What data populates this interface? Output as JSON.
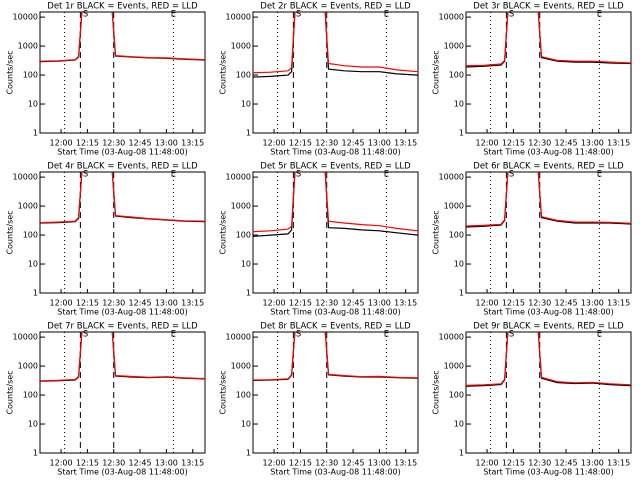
{
  "chart_data": [
    {
      "type": "line",
      "title": "Det 1r BLACK = Events, RED = LLD",
      "x_label": "Start Time (03-Aug-08 11:48:00)",
      "y_label": "Counts/sec",
      "log_scale": true,
      "xlim": [
        "11:48",
        "13:22"
      ],
      "ylim": [
        1,
        15000
      ],
      "xticks": [
        "12:00",
        "12:15",
        "12:30",
        "12:45",
        "13:00",
        "13:15"
      ],
      "yticks": [
        1,
        10,
        100,
        1000,
        10000
      ],
      "x": [
        "11:48",
        "11:58",
        "12:08",
        "12:10",
        "12:12",
        "12:29",
        "12:31",
        "12:40",
        "12:50",
        "13:00",
        "13:10",
        "13:22"
      ],
      "series": [
        {
          "color": "#000000",
          "values": [
            290,
            300,
            330,
            420,
            20000,
            20000,
            450,
            420,
            390,
            380,
            350,
            330
          ]
        },
        {
          "color": "#ff0000",
          "values": [
            300,
            310,
            340,
            440,
            20000,
            20000,
            470,
            430,
            400,
            390,
            360,
            340
          ]
        }
      ],
      "vlines": [
        {
          "x": "12:02",
          "style": "dotted"
        },
        {
          "x": "12:11",
          "style": "dashed"
        },
        {
          "x": "12:30",
          "style": "dashed"
        },
        {
          "x": "13:04",
          "style": "dotted"
        }
      ],
      "annotations": [
        {
          "x": "12:14",
          "label": "S"
        },
        {
          "x": "13:04",
          "label": "E"
        }
      ]
    },
    {
      "type": "line",
      "title": "Det 2r BLACK = Events, RED = LLD",
      "x_label": "Start Time (03-Aug-08 11:48:00)",
      "y_label": "Counts/sec",
      "log_scale": true,
      "xlim": [
        "11:48",
        "13:22"
      ],
      "ylim": [
        1,
        15000
      ],
      "xticks": [
        "12:00",
        "12:15",
        "12:30",
        "12:45",
        "13:00",
        "13:15"
      ],
      "yticks": [
        1,
        10,
        100,
        1000,
        10000
      ],
      "x": [
        "11:48",
        "11:58",
        "12:08",
        "12:10",
        "12:12",
        "12:29",
        "12:31",
        "12:40",
        "12:50",
        "13:00",
        "13:10",
        "13:22"
      ],
      "series": [
        {
          "color": "#000000",
          "values": [
            85,
            90,
            100,
            130,
            20000,
            20000,
            160,
            140,
            130,
            130,
            110,
            100
          ]
        },
        {
          "color": "#ff0000",
          "values": [
            120,
            125,
            140,
            180,
            20000,
            20000,
            250,
            210,
            190,
            190,
            150,
            130
          ]
        }
      ],
      "vlines": [
        {
          "x": "12:02",
          "style": "dotted"
        },
        {
          "x": "12:11",
          "style": "dashed"
        },
        {
          "x": "12:30",
          "style": "dashed"
        },
        {
          "x": "13:04",
          "style": "dotted"
        }
      ],
      "annotations": [
        {
          "x": "12:14",
          "label": "S"
        },
        {
          "x": "13:04",
          "label": "E"
        }
      ]
    },
    {
      "type": "line",
      "title": "Det 3r BLACK = Events, RED = LLD",
      "x_label": "Start Time (03-Aug-08 11:48:00)",
      "y_label": "Counts/sec",
      "log_scale": true,
      "xlim": [
        "11:48",
        "13:22"
      ],
      "ylim": [
        1,
        15000
      ],
      "xticks": [
        "12:00",
        "12:15",
        "12:30",
        "12:45",
        "13:00",
        "13:15"
      ],
      "yticks": [
        1,
        10,
        100,
        1000,
        10000
      ],
      "x": [
        "11:48",
        "11:58",
        "12:08",
        "12:10",
        "12:12",
        "12:29",
        "12:31",
        "12:40",
        "12:50",
        "13:00",
        "13:10",
        "13:22"
      ],
      "series": [
        {
          "color": "#000000",
          "values": [
            190,
            200,
            220,
            300,
            20000,
            20000,
            400,
            300,
            280,
            280,
            260,
            250
          ]
        },
        {
          "color": "#ff0000",
          "values": [
            210,
            215,
            240,
            320,
            20000,
            20000,
            430,
            320,
            300,
            300,
            280,
            260
          ]
        }
      ],
      "vlines": [
        {
          "x": "12:02",
          "style": "dotted"
        },
        {
          "x": "12:11",
          "style": "dashed"
        },
        {
          "x": "12:30",
          "style": "dashed"
        },
        {
          "x": "13:04",
          "style": "dotted"
        }
      ],
      "annotations": [
        {
          "x": "12:14",
          "label": "S"
        },
        {
          "x": "13:04",
          "label": "E"
        }
      ]
    },
    {
      "type": "line",
      "title": "Det 4r BLACK = Events, RED = LLD",
      "x_label": "Start Time (03-Aug-08 11:48:00)",
      "y_label": "Counts/sec",
      "log_scale": true,
      "xlim": [
        "11:48",
        "13:22"
      ],
      "ylim": [
        1,
        15000
      ],
      "xticks": [
        "12:00",
        "12:15",
        "12:30",
        "12:45",
        "13:00",
        "13:15"
      ],
      "yticks": [
        1,
        10,
        100,
        1000,
        10000
      ],
      "x": [
        "11:48",
        "11:58",
        "12:08",
        "12:10",
        "12:12",
        "12:29",
        "12:31",
        "12:40",
        "12:50",
        "13:00",
        "13:10",
        "13:22"
      ],
      "series": [
        {
          "color": "#000000",
          "values": [
            260,
            270,
            290,
            380,
            20000,
            20000,
            450,
            400,
            360,
            330,
            300,
            290
          ]
        },
        {
          "color": "#ff0000",
          "values": [
            270,
            280,
            300,
            400,
            20000,
            20000,
            470,
            420,
            370,
            340,
            310,
            300
          ]
        }
      ],
      "vlines": [
        {
          "x": "12:02",
          "style": "dotted"
        },
        {
          "x": "12:11",
          "style": "dashed"
        },
        {
          "x": "12:30",
          "style": "dashed"
        },
        {
          "x": "13:04",
          "style": "dotted"
        }
      ],
      "annotations": [
        {
          "x": "12:14",
          "label": "S"
        },
        {
          "x": "13:04",
          "label": "E"
        }
      ]
    },
    {
      "type": "line",
      "title": "Det 5r BLACK = Events, RED = LLD",
      "x_label": "Start Time (03-Aug-08 11:48:00)",
      "y_label": "Counts/sec",
      "log_scale": true,
      "xlim": [
        "11:48",
        "13:22"
      ],
      "ylim": [
        1,
        15000
      ],
      "xticks": [
        "12:00",
        "12:15",
        "12:30",
        "12:45",
        "13:00",
        "13:15"
      ],
      "yticks": [
        1,
        10,
        100,
        1000,
        10000
      ],
      "x": [
        "11:48",
        "11:58",
        "12:08",
        "12:10",
        "12:12",
        "12:29",
        "12:31",
        "12:40",
        "12:50",
        "13:00",
        "13:10",
        "13:22"
      ],
      "series": [
        {
          "color": "#000000",
          "values": [
            90,
            100,
            110,
            150,
            20000,
            20000,
            180,
            170,
            150,
            140,
            120,
            100
          ]
        },
        {
          "color": "#ff0000",
          "values": [
            130,
            140,
            160,
            200,
            20000,
            20000,
            300,
            260,
            230,
            210,
            170,
            140
          ]
        }
      ],
      "vlines": [
        {
          "x": "12:02",
          "style": "dotted"
        },
        {
          "x": "12:11",
          "style": "dashed"
        },
        {
          "x": "12:30",
          "style": "dashed"
        },
        {
          "x": "13:04",
          "style": "dotted"
        }
      ],
      "annotations": [
        {
          "x": "12:14",
          "label": "S"
        },
        {
          "x": "13:04",
          "label": "E"
        }
      ]
    },
    {
      "type": "line",
      "title": "Det 6r BLACK = Events, RED = LLD",
      "x_label": "Start Time (03-Aug-08 11:48:00)",
      "y_label": "Counts/sec",
      "log_scale": true,
      "xlim": [
        "11:48",
        "13:22"
      ],
      "ylim": [
        1,
        15000
      ],
      "xticks": [
        "12:00",
        "12:15",
        "12:30",
        "12:45",
        "13:00",
        "13:15"
      ],
      "yticks": [
        1,
        10,
        100,
        1000,
        10000
      ],
      "x": [
        "11:48",
        "11:58",
        "12:08",
        "12:10",
        "12:12",
        "12:29",
        "12:31",
        "12:40",
        "12:50",
        "13:00",
        "13:10",
        "13:22"
      ],
      "series": [
        {
          "color": "#000000",
          "values": [
            190,
            200,
            220,
            320,
            20000,
            20000,
            400,
            300,
            260,
            260,
            260,
            240
          ]
        },
        {
          "color": "#ff0000",
          "values": [
            205,
            215,
            235,
            340,
            20000,
            20000,
            430,
            320,
            280,
            280,
            275,
            255
          ]
        }
      ],
      "vlines": [
        {
          "x": "12:02",
          "style": "dotted"
        },
        {
          "x": "12:11",
          "style": "dashed"
        },
        {
          "x": "12:30",
          "style": "dashed"
        },
        {
          "x": "13:04",
          "style": "dotted"
        }
      ],
      "annotations": [
        {
          "x": "12:14",
          "label": "S"
        },
        {
          "x": "13:04",
          "label": "E"
        }
      ]
    },
    {
      "type": "line",
      "title": "Det 7r BLACK = Events, RED = LLD",
      "x_label": "Start Time (03-Aug-08 11:48:00)",
      "y_label": "Counts/sec",
      "log_scale": true,
      "xlim": [
        "11:48",
        "13:22"
      ],
      "ylim": [
        1,
        15000
      ],
      "xticks": [
        "12:00",
        "12:15",
        "12:30",
        "12:45",
        "13:00",
        "13:15"
      ],
      "yticks": [
        1,
        10,
        100,
        1000,
        10000
      ],
      "x": [
        "11:48",
        "11:58",
        "12:08",
        "12:10",
        "12:12",
        "12:29",
        "12:31",
        "12:40",
        "12:50",
        "13:00",
        "13:10",
        "13:22"
      ],
      "series": [
        {
          "color": "#000000",
          "values": [
            300,
            310,
            330,
            420,
            20000,
            20000,
            450,
            420,
            400,
            420,
            380,
            360
          ]
        },
        {
          "color": "#ff0000",
          "values": [
            310,
            320,
            345,
            440,
            20000,
            20000,
            470,
            440,
            410,
            430,
            390,
            370
          ]
        }
      ],
      "vlines": [
        {
          "x": "12:02",
          "style": "dotted"
        },
        {
          "x": "12:11",
          "style": "dashed"
        },
        {
          "x": "12:30",
          "style": "dashed"
        },
        {
          "x": "13:04",
          "style": "dotted"
        }
      ],
      "annotations": [
        {
          "x": "12:14",
          "label": "S"
        },
        {
          "x": "13:04",
          "label": "E"
        }
      ]
    },
    {
      "type": "line",
      "title": "Det 8r BLACK = Events, RED = LLD",
      "x_label": "Start Time (03-Aug-08 11:48:00)",
      "y_label": "Counts/sec",
      "log_scale": true,
      "xlim": [
        "11:48",
        "13:22"
      ],
      "ylim": [
        1,
        15000
      ],
      "xticks": [
        "12:00",
        "12:15",
        "12:30",
        "12:45",
        "13:00",
        "13:15"
      ],
      "yticks": [
        1,
        10,
        100,
        1000,
        10000
      ],
      "x": [
        "11:48",
        "11:58",
        "12:08",
        "12:10",
        "12:12",
        "12:29",
        "12:31",
        "12:40",
        "12:50",
        "13:00",
        "13:10",
        "13:22"
      ],
      "series": [
        {
          "color": "#000000",
          "values": [
            320,
            330,
            350,
            480,
            20000,
            20000,
            500,
            450,
            420,
            420,
            400,
            380
          ]
        },
        {
          "color": "#ff0000",
          "values": [
            330,
            340,
            365,
            500,
            20000,
            20000,
            520,
            470,
            430,
            440,
            410,
            390
          ]
        }
      ],
      "vlines": [
        {
          "x": "12:02",
          "style": "dotted"
        },
        {
          "x": "12:11",
          "style": "dashed"
        },
        {
          "x": "12:30",
          "style": "dashed"
        },
        {
          "x": "13:04",
          "style": "dotted"
        }
      ],
      "annotations": [
        {
          "x": "12:14",
          "label": "S"
        },
        {
          "x": "13:04",
          "label": "E"
        }
      ]
    },
    {
      "type": "line",
      "title": "Det 9r BLACK = Events, RED = LLD",
      "x_label": "Start Time (03-Aug-08 11:48:00)",
      "y_label": "Counts/sec",
      "log_scale": true,
      "xlim": [
        "11:48",
        "13:22"
      ],
      "ylim": [
        1,
        15000
      ],
      "xticks": [
        "12:00",
        "12:15",
        "12:30",
        "12:45",
        "13:00",
        "13:15"
      ],
      "yticks": [
        1,
        10,
        100,
        1000,
        10000
      ],
      "x": [
        "11:48",
        "11:58",
        "12:08",
        "12:10",
        "12:12",
        "12:29",
        "12:31",
        "12:40",
        "12:50",
        "13:00",
        "13:10",
        "13:22"
      ],
      "series": [
        {
          "color": "#000000",
          "values": [
            200,
            210,
            230,
            330,
            20000,
            20000,
            380,
            270,
            250,
            260,
            230,
            210
          ]
        },
        {
          "color": "#ff0000",
          "values": [
            215,
            225,
            245,
            350,
            20000,
            20000,
            410,
            290,
            265,
            275,
            245,
            225
          ]
        }
      ],
      "vlines": [
        {
          "x": "12:02",
          "style": "dotted"
        },
        {
          "x": "12:11",
          "style": "dashed"
        },
        {
          "x": "12:30",
          "style": "dashed"
        },
        {
          "x": "13:04",
          "style": "dotted"
        }
      ],
      "annotations": [
        {
          "x": "12:14",
          "label": "S"
        },
        {
          "x": "13:04",
          "label": "E"
        }
      ]
    }
  ]
}
